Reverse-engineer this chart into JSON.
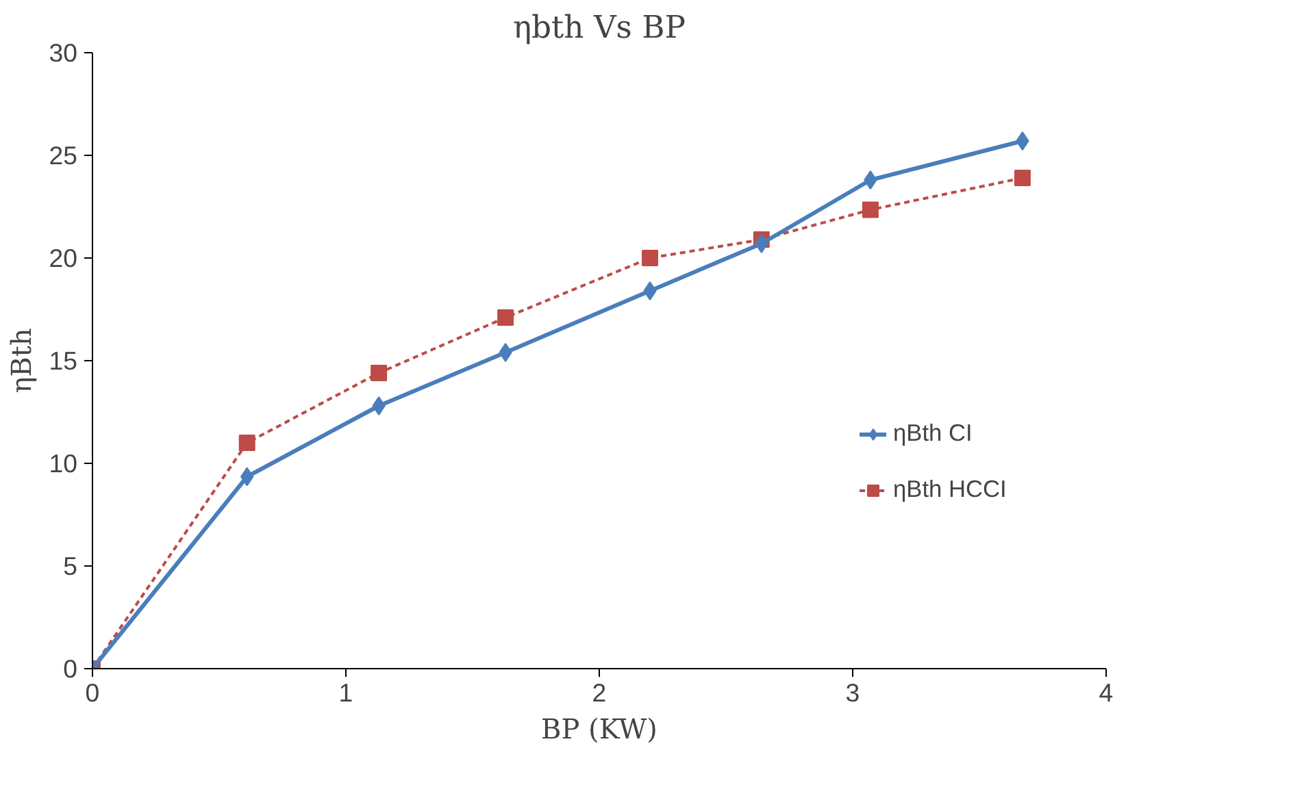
{
  "chart_data": {
    "type": "line",
    "title": "ηbth Vs BP",
    "xlabel": "BP (KW)",
    "ylabel": "ηBth",
    "xlim": [
      0,
      4
    ],
    "xticks": [
      0,
      1,
      2,
      3,
      4
    ],
    "ylim": [
      0,
      30
    ],
    "yticks": [
      0,
      5,
      10,
      15,
      20,
      25,
      30
    ],
    "grid": false,
    "legend": "right",
    "series": [
      {
        "name": "ηBth CI",
        "color": "#4a7ebb",
        "marker": "diamond",
        "line_style": "solid",
        "x": [
          0,
          0.61,
          1.13,
          1.63,
          2.2,
          2.64,
          3.07,
          3.67
        ],
        "values": [
          0,
          9.35,
          12.8,
          15.4,
          18.4,
          20.7,
          23.8,
          25.7
        ]
      },
      {
        "name": "ηBth HCCI",
        "color": "#be4b48",
        "marker": "square",
        "line_style": "dashed",
        "x": [
          0,
          0.61,
          1.13,
          1.63,
          2.2,
          2.64,
          3.07,
          3.67
        ],
        "values": [
          0,
          11.0,
          14.4,
          17.1,
          20.0,
          20.9,
          22.35,
          23.9
        ]
      }
    ]
  }
}
